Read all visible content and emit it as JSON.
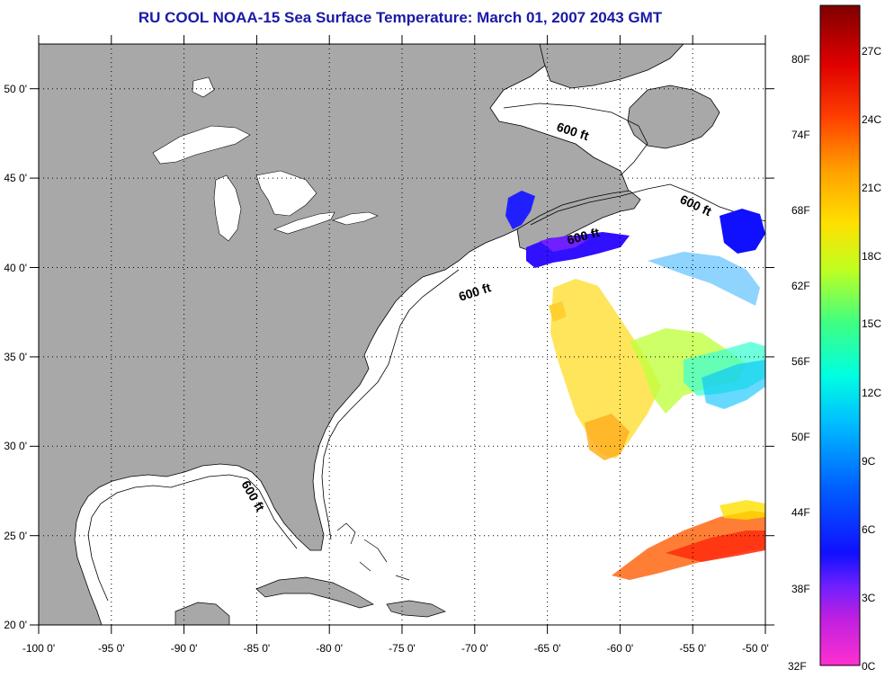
{
  "title": "RU COOL  NOAA-15  Sea Surface Temperature:  March 01, 2007 2043 GMT",
  "map": {
    "lon_range": [
      -100,
      -50
    ],
    "lat_range": [
      20,
      52.5
    ],
    "lon_ticks": [
      "-100 0'",
      "-95 0'",
      "-90 0'",
      "-85 0'",
      "-80 0'",
      "-75 0'",
      "-70 0'",
      "-65 0'",
      "-60 0'",
      "-55 0'",
      "-50 0'"
    ],
    "lat_ticks": [
      "50 0'",
      "45 0'",
      "40 0'",
      "35 0'",
      "30 0'",
      "25 0'",
      "20 0'"
    ],
    "isobath_labels": [
      "600 ft",
      "600 ft",
      "600 ft",
      "600 ft",
      "600 ft"
    ],
    "colors": {
      "land": "#a8a8a8",
      "ocean": "#ffffff",
      "title": "#1a1aa6"
    }
  },
  "colorbar": {
    "fahrenheit_labels": [
      "80F",
      "74F",
      "68F",
      "62F",
      "56F",
      "50F",
      "44F",
      "38F",
      "32F"
    ],
    "celsius_labels": [
      "27C",
      "24C",
      "21C",
      "18C",
      "15C",
      "12C",
      "9C",
      "6C",
      "3C",
      "0C"
    ],
    "gradient": [
      "#ff30d0",
      "#8020ff",
      "#1010ff",
      "#0080ff",
      "#00ffff",
      "#40ff80",
      "#c0ff20",
      "#ffe000",
      "#ff8000",
      "#ff1000",
      "#800000"
    ]
  }
}
